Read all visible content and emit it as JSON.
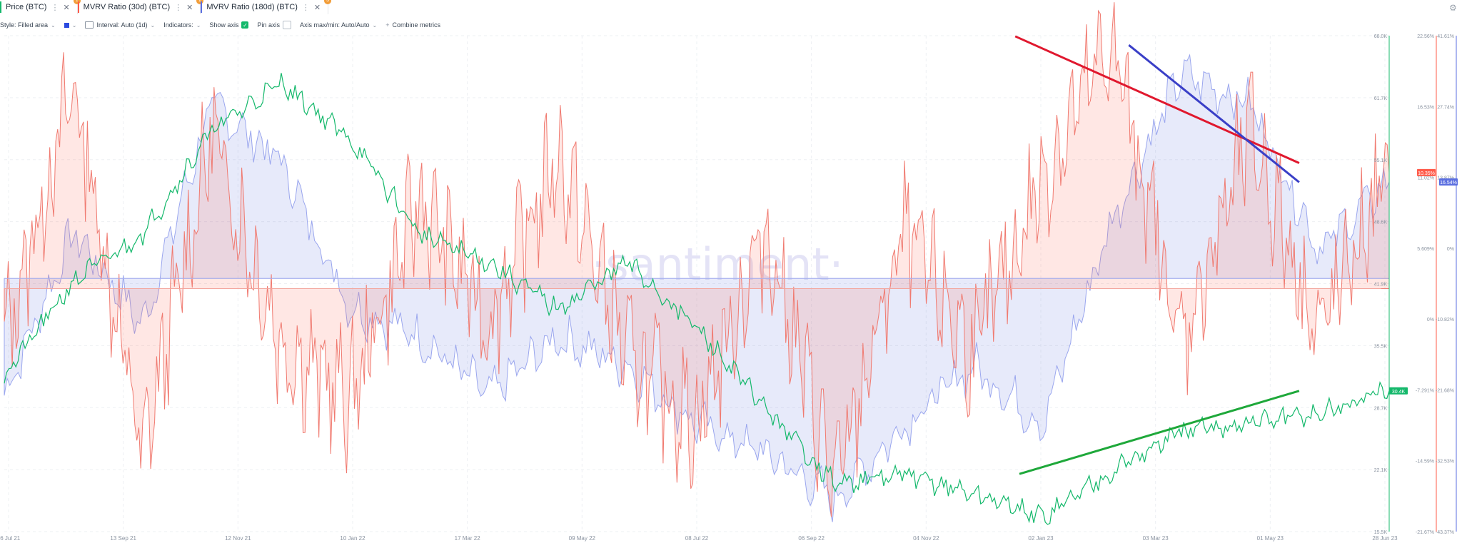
{
  "tabs": [
    {
      "label": "Price (BTC)",
      "color": "#14b86b",
      "badge": "1"
    },
    {
      "label": "MVRV Ratio (30d) (BTC)",
      "color": "#ff5b4a",
      "badge": "2"
    },
    {
      "label": "MVRV Ratio (180d) (BTC)",
      "color": "#5b6fe0",
      "badge": "3"
    }
  ],
  "toolbar": {
    "style_label": "Style: Filled area",
    "interval_label": "Interval: Auto (1d)",
    "indicators_label": "Indicators:",
    "show_axis_label": "Show axis",
    "pin_axis_label": "Pin axis",
    "axis_maxmin_label": "Axis max/min: Auto/Auto",
    "combine_label": "Combine metrics"
  },
  "watermark": "·santiment·",
  "chart_data": {
    "type": "area",
    "x_ticks": [
      "16 Jul 21",
      "13 Sep 21",
      "12 Nov 21",
      "10 Jan 22",
      "17 Mar 22",
      "09 May 22",
      "08 Jul 22",
      "06 Sep 22",
      "04 Nov 22",
      "02 Jan 23",
      "03 Mar 23",
      "01 May 23",
      "28 Jun 23"
    ],
    "price_axis": {
      "ticks": [
        "68.0K",
        "61.7K",
        "55.1K",
        "48.6K",
        "41.9K",
        "35.5K",
        "28.7K",
        "22.1K",
        "15.5K"
      ],
      "range": [
        15.5,
        68.0
      ],
      "unit": "K"
    },
    "mvrv30_axis": {
      "ticks": [
        "22.56%",
        "16.53%",
        "11.02%",
        "5.609%",
        "0%",
        "-7.291%",
        "-14.59%",
        "-21.67%"
      ],
      "range": [
        -21.67,
        22.56
      ]
    },
    "mvrv180_axis": {
      "ticks": [
        "41.61%",
        "27.74%",
        "13.87%",
        "0%",
        "-10.82%",
        "-21.68%",
        "-32.53%",
        "-43.37%"
      ],
      "range": [
        -43.37,
        41.61
      ]
    },
    "current_values": {
      "price": "30.4K",
      "mvrv30": "10.35%",
      "mvrv180": "16.54%"
    },
    "series": [
      {
        "name": "Price (BTC)",
        "color": "#14b86b",
        "t": [
          0,
          0.05,
          0.1,
          0.15,
          0.2,
          0.25,
          0.3,
          0.35,
          0.4,
          0.45,
          0.5,
          0.55,
          0.6,
          0.65,
          0.7,
          0.75,
          0.8,
          0.85,
          0.9,
          0.95,
          1.0
        ],
        "values": [
          32,
          42,
          47,
          58,
          63,
          57,
          47,
          44,
          39,
          44,
          37,
          28.5,
          20.5,
          21.5,
          19.5,
          17,
          22,
          26,
          27,
          28,
          30.4
        ]
      },
      {
        "name": "MVRV Ratio (30d) (BTC)",
        "color": "#ff5b4a",
        "t": [
          0,
          0.05,
          0.1,
          0.15,
          0.2,
          0.25,
          0.3,
          0.35,
          0.4,
          0.45,
          0.5,
          0.55,
          0.6,
          0.65,
          0.7,
          0.75,
          0.8,
          0.85,
          0.9,
          0.95,
          1.0
        ],
        "values": [
          -5,
          18,
          -15,
          14,
          -5,
          -10,
          8,
          -3,
          12,
          -6,
          -12,
          5,
          -18,
          5,
          -6,
          10,
          22,
          -5,
          14,
          -4,
          10.35
        ]
      },
      {
        "name": "MVRV Ratio (180d) (BTC)",
        "color": "#5b6fe0",
        "t": [
          0,
          0.05,
          0.1,
          0.15,
          0.2,
          0.25,
          0.3,
          0.35,
          0.4,
          0.45,
          0.5,
          0.55,
          0.6,
          0.65,
          0.7,
          0.75,
          0.8,
          0.85,
          0.9,
          0.95,
          1.0
        ],
        "values": [
          -20,
          8,
          -8,
          30,
          20,
          -5,
          -10,
          -20,
          -10,
          -15,
          -25,
          -30,
          -38,
          -25,
          -15,
          -25,
          10,
          35,
          30,
          5,
          16.54
        ]
      }
    ],
    "trend_lines": [
      {
        "color": "#e0182e",
        "from": [
          0.73,
          22.5
        ],
        "to": [
          0.935,
          11.2
        ],
        "axis": "mvrv30"
      },
      {
        "color": "#3a3fc7",
        "from": [
          0.812,
          40
        ],
        "to": [
          0.935,
          16.5
        ],
        "axis": "mvrv180"
      },
      {
        "color": "#1ea83a",
        "from": [
          0.733,
          21.6
        ],
        "to": [
          0.935,
          30.4
        ],
        "axis": "price"
      }
    ]
  }
}
